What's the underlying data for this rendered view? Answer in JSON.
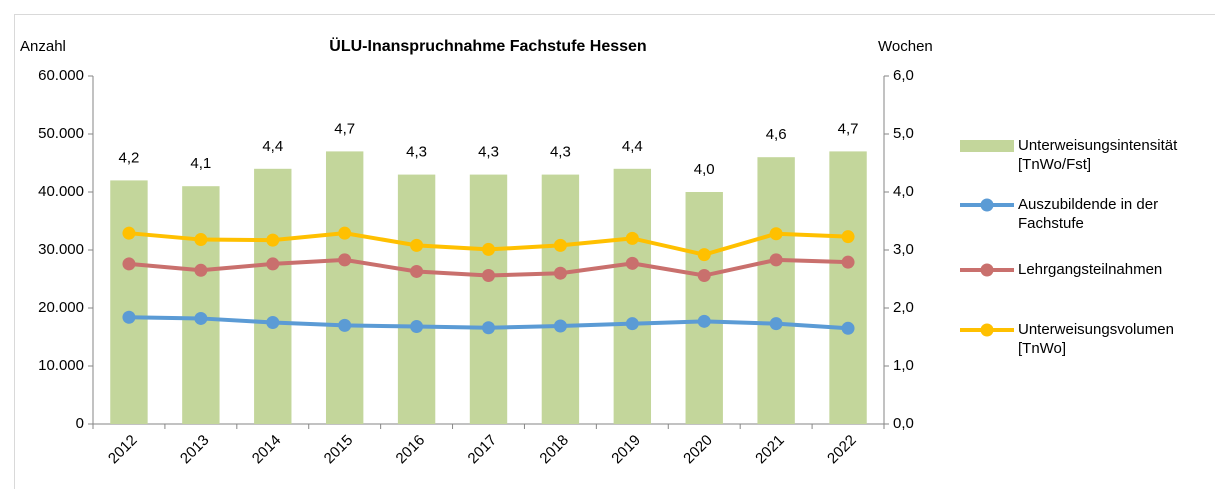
{
  "chart_data": {
    "type": "combo",
    "title": "ÜLU-Inanspruchnahme Fachstufe Hessen",
    "y_label": "Anzahl",
    "y2_label": "Wochen",
    "categories": [
      "2012",
      "2013",
      "2014",
      "2015",
      "2016",
      "2017",
      "2018",
      "2019",
      "2020",
      "2021",
      "2022"
    ],
    "ylim": [
      0,
      60000
    ],
    "yticks": [
      0,
      {
        "value": 10000,
        "label": "10.000"
      },
      {
        "value": 20000,
        "label": "20.000"
      },
      {
        "value": 30000,
        "label": "30.000"
      },
      {
        "value": 40000,
        "label": "40.000"
      },
      {
        "value": 50000,
        "label": "50.000"
      },
      {
        "value": 60000,
        "label": "60.000"
      }
    ],
    "y2lim": [
      0,
      6
    ],
    "y2ticks": [
      {
        "value": 0,
        "label": "0,0"
      },
      {
        "value": 1,
        "label": "1,0"
      },
      {
        "value": 2,
        "label": "2,0"
      },
      {
        "value": 3,
        "label": "3,0"
      },
      {
        "value": 4,
        "label": "4,0"
      },
      {
        "value": 5,
        "label": "5,0"
      },
      {
        "value": 6,
        "label": "6,0"
      }
    ],
    "grid": false,
    "legend": "right",
    "series": [
      {
        "name": "Unterweisungsintensität [TnWo/Fst]",
        "type": "bar",
        "axis": "y2",
        "color": "#c3d69b",
        "values": [
          4.2,
          4.1,
          4.4,
          4.7,
          4.3,
          4.3,
          4.3,
          4.4,
          4.0,
          4.6,
          4.7
        ],
        "value_labels": [
          "4,2",
          "4,1",
          "4,4",
          "4,7",
          "4,3",
          "4,3",
          "4,3",
          "4,4",
          "4,0",
          "4,6",
          "4,7"
        ]
      },
      {
        "name": "Auszubildende in der Fachstufe",
        "type": "line",
        "color": "#5b9bd5",
        "values": [
          18400,
          18200,
          17500,
          17000,
          16800,
          16600,
          16900,
          17300,
          17700,
          17300,
          16500
        ]
      },
      {
        "name": "Lehrgangsteilnahmen",
        "type": "line",
        "color": "#c9706d",
        "values": [
          27600,
          26500,
          27600,
          28300,
          26300,
          25600,
          26000,
          27700,
          25600,
          28300,
          27900
        ]
      },
      {
        "name": "Unterweisungsvolumen [TnWo]",
        "type": "line",
        "color": "#ffc000",
        "values": [
          32900,
          31800,
          31700,
          32900,
          30800,
          30100,
          30800,
          32000,
          29200,
          32800,
          32300
        ]
      }
    ]
  }
}
